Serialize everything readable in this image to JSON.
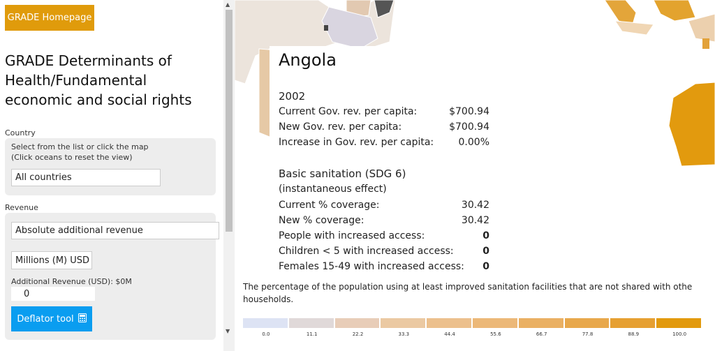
{
  "sidebar": {
    "home_button": "GRADE Homepage",
    "title": "GRADE Determinants of Health/Fundamental economic and social rights",
    "country": {
      "label": "Country",
      "hint_line1": "Select from the list or click the map",
      "hint_line2": "(Click oceans to reset the view)",
      "value": "All countries"
    },
    "revenue": {
      "label": "Revenue",
      "type_value": "Absolute additional revenue",
      "unit_value": "Millions (M) USD",
      "additional_label": "Additional Revenue (USD): $0M",
      "additional_value": "0",
      "deflator_label": "Deflator tool",
      "deflator_icon": "calculator-icon"
    }
  },
  "popup": {
    "country": "Angola",
    "year": "2002",
    "rows1": [
      {
        "label": "Current Gov. rev. per capita:",
        "value": "$700.94"
      },
      {
        "label": "New Gov. rev. per capita:",
        "value": "$700.94"
      },
      {
        "label": "Increase in Gov. rev. per capita:",
        "value": "0.00%"
      }
    ],
    "indicator": "Basic sanitation (SDG 6)",
    "effect": "(instantaneous effect)",
    "rows2": [
      {
        "label": "Current % coverage:",
        "value": "30.42"
      },
      {
        "label": "New % coverage:",
        "value": "30.42"
      },
      {
        "label": "People with increased access:",
        "value": "0"
      },
      {
        "label": "Children < 5 with increased access:",
        "value": "0"
      },
      {
        "label": "Females 15-49 with increased access:",
        "value": "0"
      }
    ]
  },
  "description": {
    "line1": "The percentage of the population using at least improved sanitation facilities that are not shared with othe",
    "line2": "households."
  },
  "legend": {
    "ticks": [
      "0.0",
      "11.1",
      "22.2",
      "33.3",
      "44.4",
      "55.6",
      "66.7",
      "77.8",
      "88.9",
      "100.0"
    ],
    "colors": [
      "#dde3f4",
      "#e0d9d9",
      "#e8cdb8",
      "#ebc9a2",
      "#ecc08d",
      "#ecb878",
      "#eab063",
      "#e8a84c",
      "#e6a032",
      "#e29a0e"
    ]
  }
}
